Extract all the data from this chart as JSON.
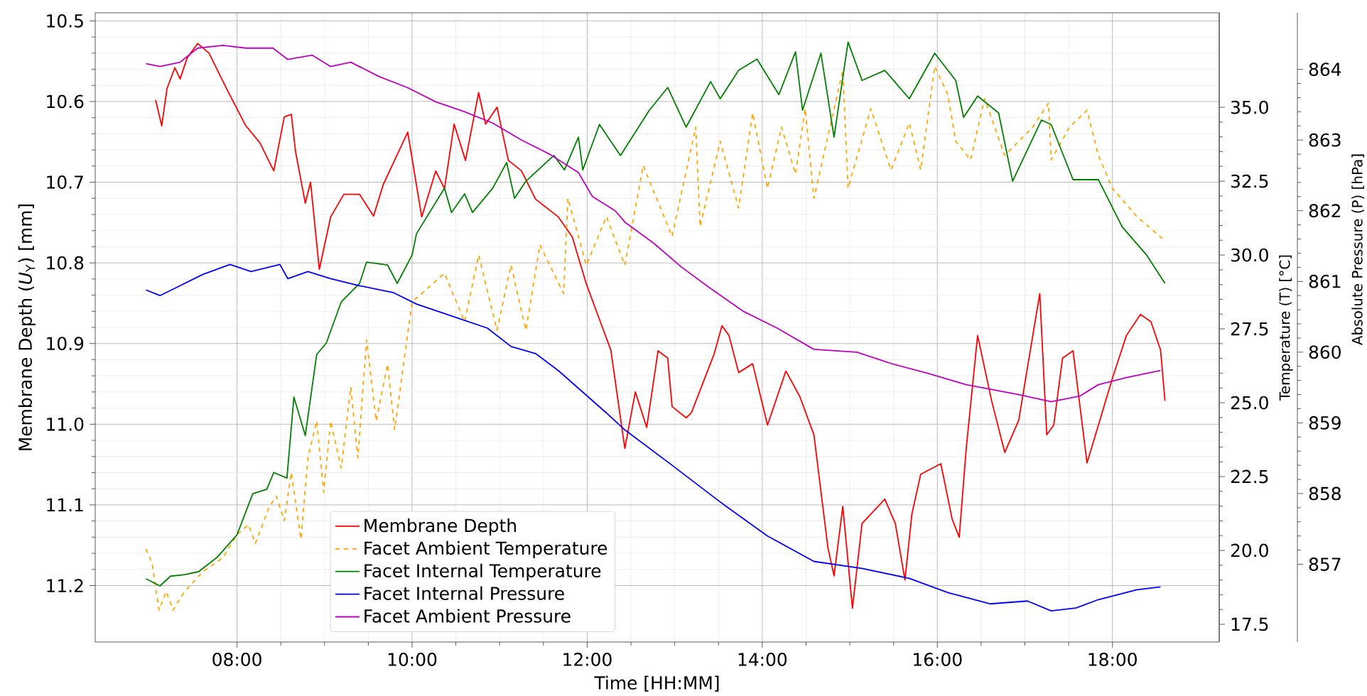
{
  "chart_data": {
    "type": "line",
    "xlabel": "Time [HH:MM]",
    "ylabel": "Membrane Depth (*U*$_{Y}$) [mm]",
    "y2label": "Temperature (T) [°C]",
    "y3label": "Absolute Pressure (P) [hPa]",
    "xlim": [
      6.38,
      19.22
    ],
    "xticks": [
      {
        "value": 8,
        "label": "08:00"
      },
      {
        "value": 10,
        "label": "10:00"
      },
      {
        "value": 12,
        "label": "12:00"
      },
      {
        "value": 14,
        "label": "14:00"
      },
      {
        "value": 16,
        "label": "16:00"
      },
      {
        "value": 18,
        "label": "18:00"
      }
    ],
    "ylim": [
      11.27,
      10.49
    ],
    "yticks": [
      10.5,
      10.6,
      10.7,
      10.8,
      10.9,
      {
        "value": 11,
        "label": "11.0"
      },
      11.1,
      11.2
    ],
    "y2lim": [
      16.9,
      38.2
    ],
    "y2ticks": [
      17.5,
      {
        "value": 20,
        "label": "20.0"
      },
      22.5,
      {
        "value": 25,
        "label": "25.0"
      },
      27.5,
      {
        "value": 30,
        "label": "30.0"
      },
      32.5,
      {
        "value": 35,
        "label": "35.0"
      }
    ],
    "y3lim": [
      855.9,
      864.8
    ],
    "y3ticks": [
      857,
      858,
      859,
      860,
      861,
      862,
      863,
      864
    ],
    "grid": true,
    "legend": "bottom",
    "series": [
      {
        "name": "Membrane Depth",
        "color": "#ff0000",
        "axis": "y",
        "line_style": "solid",
        "x": [
          7.07,
          7.14,
          7.2,
          7.29,
          7.35,
          7.43,
          7.55,
          7.68,
          7.89,
          8.1,
          8.26,
          8.42,
          8.54,
          8.62,
          8.67,
          8.78,
          8.84,
          8.94,
          9.07,
          9.22,
          9.4,
          9.56,
          9.67,
          9.95,
          10.11,
          10.27,
          10.37,
          10.48,
          10.61,
          10.76,
          10.84,
          10.97,
          11.1,
          11.25,
          11.41,
          11.67,
          11.83,
          11.99,
          12.15,
          12.27,
          12.43,
          12.55,
          12.68,
          12.81,
          12.92,
          12.97,
          13.13,
          13.19,
          13.45,
          13.54,
          13.62,
          13.73,
          13.89,
          14.06,
          14.27,
          14.43,
          14.59,
          14.75,
          14.82,
          14.92,
          15.03,
          15.14,
          15.4,
          15.52,
          15.63,
          15.71,
          15.81,
          16.04,
          16.17,
          16.25,
          16.33,
          16.46,
          16.62,
          16.77,
          16.93,
          17.17,
          17.25,
          17.33,
          17.43,
          17.55,
          17.71,
          17.84,
          18.0,
          18.16,
          18.32,
          18.44,
          18.55,
          18.6
        ],
        "values": [
          10.598,
          10.63,
          10.584,
          10.558,
          10.572,
          10.546,
          10.528,
          10.54,
          10.586,
          10.63,
          10.651,
          10.686,
          10.619,
          10.616,
          10.663,
          10.726,
          10.7,
          10.808,
          10.743,
          10.715,
          10.715,
          10.742,
          10.703,
          10.638,
          10.743,
          10.686,
          10.708,
          10.628,
          10.673,
          10.589,
          10.628,
          10.607,
          10.673,
          10.686,
          10.721,
          10.743,
          10.768,
          10.826,
          10.873,
          10.908,
          11.03,
          10.96,
          11.004,
          10.909,
          10.918,
          10.978,
          10.992,
          10.986,
          10.913,
          10.878,
          10.89,
          10.936,
          10.925,
          11.001,
          10.934,
          10.966,
          11.013,
          11.153,
          11.188,
          11.102,
          11.228,
          11.123,
          11.093,
          11.123,
          11.193,
          11.111,
          11.062,
          11.049,
          11.118,
          11.14,
          11.03,
          10.89,
          10.971,
          11.035,
          10.995,
          10.838,
          11.013,
          11.001,
          10.918,
          10.909,
          11.048,
          11.001,
          10.943,
          10.89,
          10.864,
          10.873,
          10.908,
          10.971
        ]
      },
      {
        "name": "Facet Ambient Temperature",
        "color": "#ffa500",
        "axis": "y2",
        "line_style": "dashed",
        "x": [
          6.96,
          7.03,
          7.11,
          7.19,
          7.27,
          7.4,
          7.61,
          7.84,
          8.0,
          8.13,
          8.21,
          8.37,
          8.45,
          8.54,
          8.62,
          8.73,
          8.81,
          8.91,
          8.99,
          9.07,
          9.19,
          9.3,
          9.38,
          9.48,
          9.59,
          9.72,
          9.8,
          10.0,
          10.37,
          10.6,
          10.76,
          10.97,
          11.13,
          11.3,
          11.46,
          11.73,
          11.78,
          11.99,
          12.22,
          12.43,
          12.64,
          12.97,
          13.24,
          13.29,
          13.52,
          13.73,
          13.89,
          14.06,
          14.22,
          14.38,
          14.49,
          14.59,
          14.92,
          14.98,
          15.24,
          15.47,
          15.68,
          15.81,
          15.97,
          16.12,
          16.21,
          16.38,
          16.54,
          16.77,
          17.09,
          17.27,
          17.3,
          17.51,
          17.71,
          17.84,
          18.0,
          18.28,
          18.6
        ],
        "values": [
          20.05,
          19.57,
          17.98,
          18.61,
          17.98,
          18.61,
          19.28,
          19.76,
          20.53,
          20.87,
          20.24,
          21.49,
          21.83,
          21.01,
          22.64,
          20.38,
          23.13,
          24.38,
          21.97,
          24.38,
          22.79,
          25.53,
          23.13,
          27.12,
          24.38,
          26.3,
          24.09,
          28.41,
          29.38,
          27.74,
          30.0,
          27.45,
          29.66,
          27.45,
          30.34,
          28.7,
          31.92,
          29.66,
          31.3,
          29.66,
          33.03,
          30.63,
          34.33,
          30.96,
          33.85,
          31.59,
          34.81,
          32.26,
          34.33,
          32.74,
          34.95,
          31.92,
          36.25,
          32.26,
          34.95,
          32.88,
          34.47,
          32.88,
          36.39,
          35.43,
          33.85,
          33.22,
          35.29,
          33.37,
          34.33,
          35.14,
          33.22,
          34.33,
          34.9,
          33.37,
          32.26,
          31.3,
          30.48
        ]
      },
      {
        "name": "Facet Internal Temperature",
        "color": "#008000",
        "axis": "y2",
        "line_style": "solid",
        "x": [
          6.96,
          7.12,
          7.24,
          7.4,
          7.56,
          7.77,
          8.0,
          8.18,
          8.34,
          8.42,
          8.57,
          8.65,
          8.78,
          8.91,
          9.02,
          9.19,
          9.4,
          9.48,
          9.72,
          9.83,
          10.0,
          10.05,
          10.37,
          10.45,
          10.6,
          10.69,
          10.92,
          11.08,
          11.17,
          11.3,
          11.62,
          11.74,
          11.9,
          11.95,
          12.14,
          12.38,
          12.71,
          12.92,
          13.13,
          13.41,
          13.52,
          13.73,
          13.94,
          14.19,
          14.38,
          14.46,
          14.67,
          14.82,
          14.98,
          15.14,
          15.4,
          15.68,
          15.97,
          16.21,
          16.3,
          16.46,
          16.7,
          16.86,
          17.19,
          17.3,
          17.55,
          17.84,
          18.11,
          18.39,
          18.6
        ],
        "values": [
          19.04,
          18.8,
          19.13,
          19.18,
          19.28,
          19.76,
          20.53,
          21.92,
          22.07,
          22.64,
          22.45,
          25.19,
          23.89,
          26.63,
          27.02,
          28.41,
          29.04,
          29.76,
          29.66,
          29.04,
          30.0,
          30.72,
          32.26,
          31.44,
          32.07,
          31.44,
          32.26,
          33.13,
          31.92,
          32.5,
          33.37,
          32.88,
          33.99,
          32.88,
          34.42,
          33.37,
          34.9,
          35.67,
          34.33,
          35.87,
          35.29,
          36.25,
          36.63,
          35.43,
          36.88,
          34.9,
          36.83,
          33.99,
          37.21,
          35.91,
          36.25,
          35.29,
          36.83,
          35.91,
          34.66,
          35.38,
          34.81,
          32.5,
          34.57,
          34.42,
          32.55,
          32.55,
          30.96,
          30.0,
          29.04
        ]
      },
      {
        "name": "Facet Internal Pressure",
        "color": "#0000ff",
        "axis": "y3",
        "line_style": "solid",
        "x": [
          6.96,
          7.12,
          7.35,
          7.61,
          7.92,
          8.16,
          8.49,
          8.58,
          8.81,
          9.07,
          9.4,
          9.79,
          10.05,
          10.48,
          10.86,
          11.13,
          11.41,
          11.67,
          12.22,
          12.43,
          12.97,
          13.52,
          14.06,
          14.59,
          15.14,
          15.68,
          16.12,
          16.6,
          17.03,
          17.3,
          17.58,
          17.84,
          18.28,
          18.55
        ],
        "values": [
          860.88,
          860.8,
          860.94,
          861.1,
          861.24,
          861.14,
          861.24,
          861.04,
          861.14,
          861.04,
          860.94,
          860.84,
          860.68,
          860.5,
          860.34,
          860.08,
          859.98,
          859.74,
          859.14,
          858.9,
          858.4,
          857.88,
          857.4,
          857.04,
          856.94,
          856.8,
          856.6,
          856.44,
          856.48,
          856.34,
          856.38,
          856.5,
          856.64,
          856.68
        ]
      },
      {
        "name": "Facet Ambient Pressure",
        "color": "#bf00bf",
        "axis": "y3",
        "line_style": "solid",
        "x": [
          6.96,
          7.12,
          7.35,
          7.55,
          7.84,
          8.1,
          8.41,
          8.58,
          8.86,
          9.07,
          9.3,
          9.62,
          9.95,
          10.27,
          10.6,
          10.92,
          11.25,
          11.57,
          11.9,
          12.06,
          12.32,
          12.43,
          12.76,
          13.08,
          13.41,
          13.78,
          14.17,
          14.59,
          15.08,
          15.47,
          15.89,
          16.33,
          16.93,
          17.3,
          17.63,
          17.84,
          18.16,
          18.55
        ],
        "values": [
          864.08,
          864.04,
          864.1,
          864.3,
          864.34,
          864.3,
          864.3,
          864.14,
          864.2,
          864.04,
          864.1,
          863.9,
          863.74,
          863.54,
          863.4,
          863.24,
          863.0,
          862.8,
          862.54,
          862.2,
          862.0,
          861.84,
          861.54,
          861.2,
          860.9,
          860.58,
          860.34,
          860.04,
          860.0,
          859.84,
          859.7,
          859.54,
          859.4,
          859.3,
          859.38,
          859.54,
          859.64,
          859.74
        ]
      }
    ]
  }
}
